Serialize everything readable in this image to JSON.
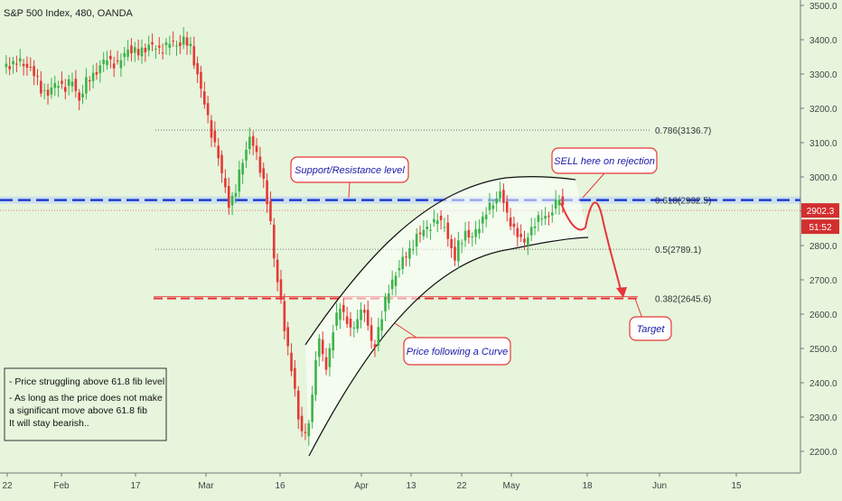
{
  "header": {
    "symbol_title": "S&P 500 Index, 480, OANDA"
  },
  "chart_data": {
    "type": "candlestick",
    "y_ticks": [
      "3500.0",
      "3400.0",
      "3300.0",
      "3200.0",
      "3100.0",
      "3000.0",
      "2900.0",
      "2800.0",
      "2700.0",
      "2600.0",
      "2500.0",
      "2400.0",
      "2300.0",
      "2200.0"
    ],
    "y_tick_values": [
      3500,
      3400,
      3300,
      3200,
      3100,
      3000,
      2900,
      2800,
      2700,
      2600,
      2500,
      2400,
      2300,
      2200
    ],
    "ylim": [
      2150,
      3530
    ],
    "x_ticks": [
      "22",
      "Feb",
      "17",
      "Mar",
      "16",
      "Apr",
      "13",
      "22",
      "May",
      "18",
      "Jun",
      "15"
    ],
    "current_price": "2902.3",
    "countdown": "51:52",
    "fib_levels": [
      {
        "label": "0.786(3136.7)",
        "value": 3136.7
      },
      {
        "label": "0.618(2932.5)",
        "value": 2932.5
      },
      {
        "label": "0.5(2789.1)",
        "value": 2789.1
      },
      {
        "label": "0.382(2645.6)",
        "value": 2645.6
      }
    ],
    "price_path": [
      [
        0,
        3320
      ],
      [
        4,
        3335
      ],
      [
        8,
        3320
      ],
      [
        11,
        3255
      ],
      [
        13,
        3245
      ],
      [
        16,
        3275
      ],
      [
        18,
        3260
      ],
      [
        20,
        3280
      ],
      [
        22,
        3225
      ],
      [
        24,
        3275
      ],
      [
        27,
        3310
      ],
      [
        30,
        3345
      ],
      [
        33,
        3325
      ],
      [
        36,
        3375
      ],
      [
        39,
        3360
      ],
      [
        42,
        3385
      ],
      [
        45,
        3370
      ],
      [
        48,
        3390
      ],
      [
        50,
        3385
      ],
      [
        52,
        3400
      ],
      [
        54,
        3375
      ],
      [
        56,
        3300
      ],
      [
        58,
        3210
      ],
      [
        60,
        3130
      ],
      [
        62,
        3060
      ],
      [
        63,
        3000
      ],
      [
        64,
        2970
      ],
      [
        65,
        2920
      ],
      [
        67,
        2960
      ],
      [
        69,
        3050
      ],
      [
        70,
        3080
      ],
      [
        71,
        3120
      ],
      [
        73,
        3060
      ],
      [
        75,
        2990
      ],
      [
        76,
        2930
      ],
      [
        77,
        2860
      ],
      [
        78,
        2760
      ],
      [
        79,
        2700
      ],
      [
        80,
        2640
      ],
      [
        81,
        2560
      ],
      [
        82,
        2490
      ],
      [
        83,
        2440
      ],
      [
        84,
        2380
      ],
      [
        85,
        2300
      ],
      [
        86,
        2260
      ],
      [
        87,
        2240
      ],
      [
        88,
        2290
      ],
      [
        89,
        2360
      ],
      [
        90,
        2480
      ],
      [
        91,
        2520
      ],
      [
        92,
        2480
      ],
      [
        93,
        2440
      ],
      [
        95,
        2560
      ],
      [
        97,
        2620
      ],
      [
        99,
        2580
      ],
      [
        101,
        2550
      ],
      [
        102,
        2590
      ],
      [
        104,
        2620
      ],
      [
        105,
        2560
      ],
      [
        106,
        2520
      ],
      [
        107,
        2500
      ],
      [
        108,
        2560
      ],
      [
        110,
        2640
      ],
      [
        112,
        2690
      ],
      [
        113,
        2720
      ],
      [
        115,
        2760
      ],
      [
        117,
        2780
      ],
      [
        119,
        2830
      ],
      [
        121,
        2840
      ],
      [
        123,
        2860
      ],
      [
        125,
        2880
      ],
      [
        126,
        2860
      ],
      [
        127,
        2860
      ],
      [
        129,
        2790
      ],
      [
        130,
        2760
      ],
      [
        131,
        2800
      ],
      [
        133,
        2840
      ],
      [
        135,
        2820
      ],
      [
        137,
        2860
      ],
      [
        139,
        2900
      ],
      [
        141,
        2920
      ],
      [
        143,
        2960
      ],
      [
        144,
        2930
      ],
      [
        145,
        2880
      ],
      [
        147,
        2850
      ],
      [
        149,
        2820
      ],
      [
        150,
        2800
      ],
      [
        151,
        2830
      ],
      [
        153,
        2870
      ],
      [
        155,
        2880
      ],
      [
        157,
        2890
      ],
      [
        159,
        2920
      ],
      [
        160,
        2940
      ],
      [
        161,
        2910
      ]
    ],
    "annotations": {
      "support_resistance": "Support/Resistance level",
      "sell_callout": "SELL here on rejection",
      "curve_note": "Price following a Curve",
      "target": "Target",
      "note_line1": "- Price struggling above 61.8 fib level",
      "note_line2": "- As long as the price does not make",
      "note_line3": "  a significant move above 61.8 fib",
      "note_line4": "  It will stay bearish.."
    },
    "colors": {
      "up": "#26a69a",
      "down": "#ef5350",
      "up_green": "#3cb44b",
      "down_red": "#e53935",
      "blue_line": "#1e3fd0",
      "red_line": "#e8353a",
      "callout_border": "#e53935",
      "callout_text": "#1a1aa8",
      "background": "#e6f5dc"
    }
  }
}
